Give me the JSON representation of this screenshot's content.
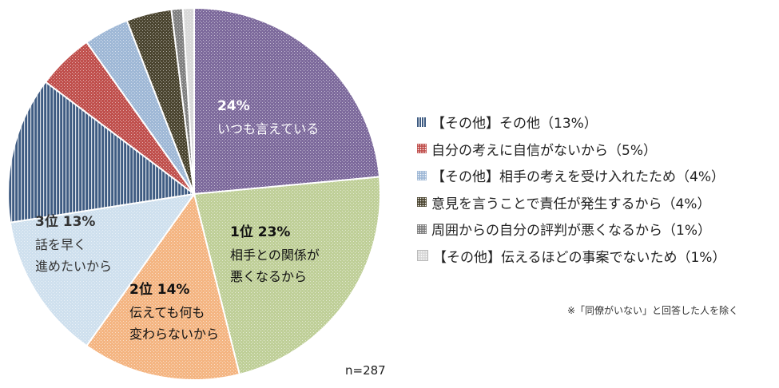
{
  "chart_data": {
    "type": "pie",
    "slices": [
      {
        "rank": "",
        "percent": "24%",
        "label_lines": [
          "いつも言えている"
        ],
        "value": 24,
        "color": "#7d6a9c",
        "pattern": "dots"
      },
      {
        "rank": "1位",
        "percent": "23%",
        "label_lines": [
          "相手との関係が",
          "悪くなるから"
        ],
        "value": 23,
        "color": "#bfcf98",
        "pattern": "dots"
      },
      {
        "rank": "2位",
        "percent": "14%",
        "label_lines": [
          "伝えても何も",
          "変わらないから"
        ],
        "value": 14,
        "color": "#f4b582",
        "pattern": "dots"
      },
      {
        "rank": "3位",
        "percent": "13%",
        "label_lines": [
          "話を早く",
          "進めたいから"
        ],
        "value": 13,
        "color": "#cfe0ee",
        "pattern": "dots"
      },
      {
        "legend": "【その他】その他（13%）",
        "value": 13,
        "color": "#3e5b82",
        "pattern": "vlines"
      },
      {
        "legend": "自分の考えに自信がないから（5%）",
        "value": 5,
        "color": "#c0504d",
        "pattern": "dots"
      },
      {
        "legend": "【その他】相手の考えを受け入れたため（4%）",
        "value": 4,
        "color": "#9fb8d6",
        "pattern": "dots"
      },
      {
        "legend": "意見を言うことで責任が発生するから（4%）",
        "value": 4,
        "color": "#4b4530",
        "pattern": "dots"
      },
      {
        "legend": "周囲からの自分の評判が悪くなるから（1%）",
        "value": 1,
        "color": "#808080",
        "pattern": "dots"
      },
      {
        "legend": "【その他】伝えるほどの事案でないため（1%）",
        "value": 1,
        "color": "#d8d8d8",
        "pattern": "dots"
      }
    ]
  },
  "legend": [
    {
      "label": "【その他】その他（13%）",
      "color": "#3e5b82"
    },
    {
      "label": "自分の考えに自信がないから（5%）",
      "color": "#c0504d"
    },
    {
      "label": "【その他】相手の考えを受け入れたため（4%）",
      "color": "#9fb8d6"
    },
    {
      "label": "意見を言うことで責任が発生するから（4%）",
      "color": "#4b4530"
    },
    {
      "label": "周囲からの自分の評判が悪くなるから（1%）",
      "color": "#808080"
    },
    {
      "label": "【その他】伝えるほどの事案でないため（1%）",
      "color": "#d8d8d8"
    }
  ],
  "note": "※「同僚がいない」と回答した人を除く",
  "sample_size": "n=287"
}
